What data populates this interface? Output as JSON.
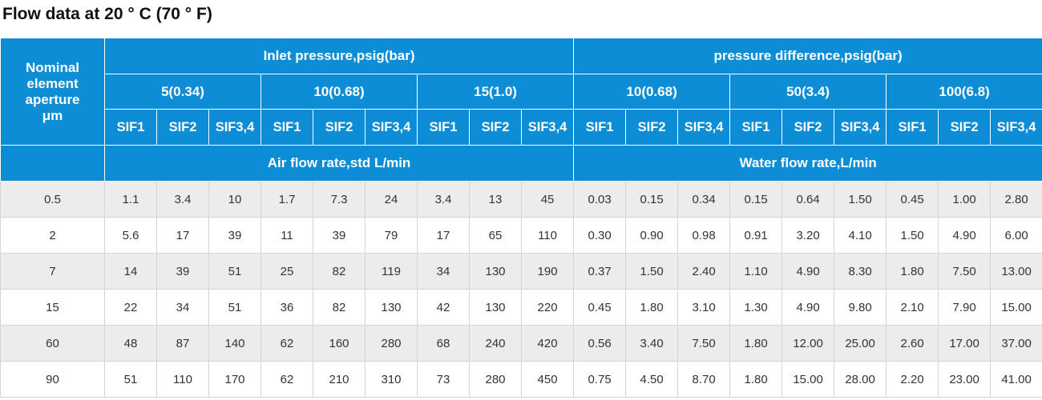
{
  "title": "Flow data at 20 ° C (70 ° F)",
  "header": {
    "nominal_col": [
      "Nominal",
      "element",
      "aperture",
      "μm"
    ],
    "groups": [
      {
        "label": "Inlet pressure,psig(bar)",
        "subgroups": [
          "5(0.34)",
          "10(0.68)",
          "15(1.0)"
        ],
        "unit_label": "Air flow rate,std L/min"
      },
      {
        "label": "pressure difference,psig(bar)",
        "subgroups": [
          "10(0.68)",
          "50(3.4)",
          "100(6.8)"
        ],
        "unit_label": "Water flow rate,L/min"
      }
    ],
    "models": [
      "SIF1",
      "SIF2",
      "SIF3,4"
    ]
  },
  "rows": [
    {
      "aperture": "0.5",
      "values": [
        "1.1",
        "3.4",
        "10",
        "1.7",
        "7.3",
        "24",
        "3.4",
        "13",
        "45",
        "0.03",
        "0.15",
        "0.34",
        "0.15",
        "0.64",
        "1.50",
        "0.45",
        "1.00",
        "2.80"
      ]
    },
    {
      "aperture": "2",
      "values": [
        "5.6",
        "17",
        "39",
        "11",
        "39",
        "79",
        "17",
        "65",
        "110",
        "0.30",
        "0.90",
        "0.98",
        "0.91",
        "3.20",
        "4.10",
        "1.50",
        "4.90",
        "6.00"
      ]
    },
    {
      "aperture": "7",
      "values": [
        "14",
        "39",
        "51",
        "25",
        "82",
        "119",
        "34",
        "130",
        "190",
        "0.37",
        "1.50",
        "2.40",
        "1.10",
        "4.90",
        "8.30",
        "1.80",
        "7.50",
        "13.00"
      ]
    },
    {
      "aperture": "15",
      "values": [
        "22",
        "34",
        "51",
        "36",
        "82",
        "130",
        "42",
        "130",
        "220",
        "0.45",
        "1.80",
        "3.10",
        "1.30",
        "4.90",
        "9.80",
        "2.10",
        "7.90",
        "15.00"
      ]
    },
    {
      "aperture": "60",
      "values": [
        "48",
        "87",
        "140",
        "62",
        "160",
        "280",
        "68",
        "240",
        "420",
        "0.56",
        "3.40",
        "7.50",
        "1.80",
        "12.00",
        "25.00",
        "2.60",
        "17.00",
        "37.00"
      ]
    },
    {
      "aperture": "90",
      "values": [
        "51",
        "110",
        "170",
        "62",
        "210",
        "310",
        "73",
        "280",
        "450",
        "0.75",
        "4.50",
        "8.70",
        "1.80",
        "15.00",
        "28.00",
        "2.20",
        "23.00",
        "41.00"
      ]
    }
  ],
  "colors": {
    "header_bg": "#0c8dd6",
    "header_text": "#ffffff",
    "row_alt_bg": "#ececec",
    "row_bg": "#ffffff",
    "cell_text": "#333333"
  }
}
